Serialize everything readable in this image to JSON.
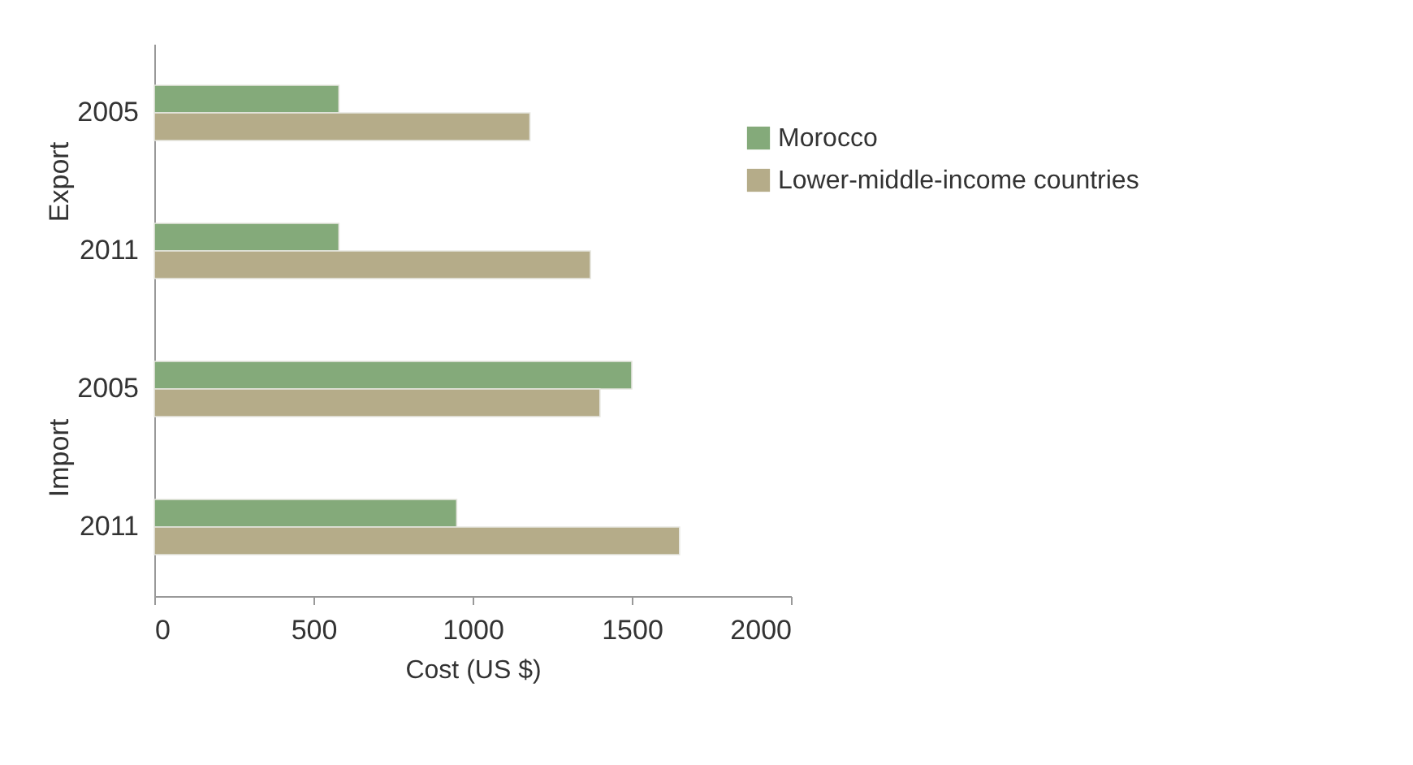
{
  "chart_data": {
    "type": "bar",
    "orientation": "horizontal",
    "xlabel": "Cost (US $)",
    "categories": [
      "2005",
      "2011",
      "2005",
      "2011"
    ],
    "annotations": [
      "Export",
      "Import"
    ],
    "series": [
      {
        "name": "Morocco",
        "color": "#84aa7a",
        "values": [
          580,
          580,
          1500,
          950
        ]
      },
      {
        "name": "Lower-middle-income countries",
        "color": "#b5ac89",
        "values": [
          1180,
          1370,
          1400,
          1650
        ]
      }
    ],
    "xlim": [
      0,
      2000
    ],
    "xticks": [
      0,
      500,
      1000,
      1500,
      2000
    ],
    "legend": "right"
  }
}
